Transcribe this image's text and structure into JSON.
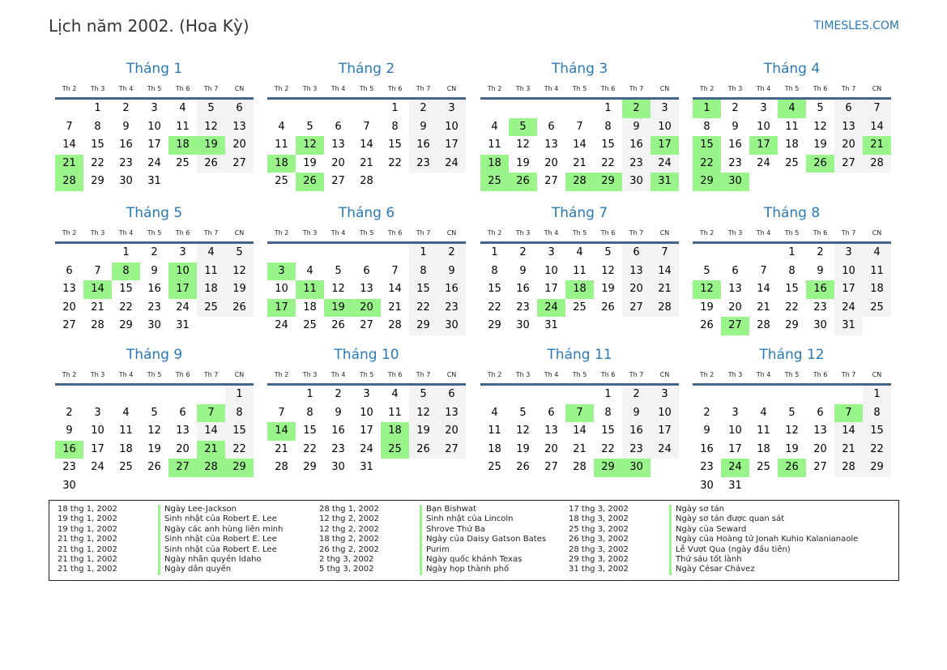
{
  "header": {
    "title": "Lịch năm 2002. (Hoa Kỳ)",
    "brand": "TIMESLES.COM"
  },
  "year": 2002,
  "colors": {
    "accent": "#2a7ab8",
    "holiday": "#99f58a",
    "weekend": "#f3f3f3",
    "rule": "#44648c"
  },
  "weekdays": [
    "Th 2",
    "Th 3",
    "Th 4",
    "Th 5",
    "Th 6",
    "Th 7",
    "CN"
  ],
  "months": [
    {
      "title": "Tháng 1",
      "holidays": [
        18,
        19,
        21,
        28
      ]
    },
    {
      "title": "Tháng 2",
      "holidays": [
        12,
        18,
        26
      ]
    },
    {
      "title": "Tháng 3",
      "holidays": [
        2,
        5,
        17,
        18,
        25,
        26,
        28,
        29,
        31
      ]
    },
    {
      "title": "Tháng 4",
      "holidays": [
        1,
        4,
        15,
        17,
        21,
        22,
        26,
        29,
        30
      ]
    },
    {
      "title": "Tháng 5",
      "holidays": [
        8,
        10,
        14,
        17
      ]
    },
    {
      "title": "Tháng 6",
      "holidays": [
        3,
        11,
        17,
        19,
        20
      ]
    },
    {
      "title": "Tháng 7",
      "holidays": [
        18,
        24
      ]
    },
    {
      "title": "Tháng 8",
      "holidays": [
        12,
        16,
        27
      ]
    },
    {
      "title": "Tháng 9",
      "holidays": [
        7,
        16,
        21,
        27,
        28,
        29
      ]
    },
    {
      "title": "Tháng 10",
      "holidays": [
        14,
        18,
        25
      ]
    },
    {
      "title": "Tháng 11",
      "holidays": [
        7,
        29,
        30
      ]
    },
    {
      "title": "Tháng 12",
      "holidays": [
        7,
        24,
        26
      ]
    }
  ],
  "holiday_list": [
    [
      {
        "date": "18 thg 1, 2002",
        "name": "Ngày Lee-Jackson"
      },
      {
        "date": "19 thg 1, 2002",
        "name": "Sinh nhật của Robert E. Lee"
      },
      {
        "date": "19 thg 1, 2002",
        "name": "Ngày các anh hùng liên minh"
      },
      {
        "date": "21 thg 1, 2002",
        "name": "Sinh nhật của Robert E. Lee"
      },
      {
        "date": "21 thg 1, 2002",
        "name": "Sinh nhật của Robert E. Lee"
      },
      {
        "date": "21 thg 1, 2002",
        "name": "Ngày nhân quyền Idaho"
      },
      {
        "date": "21 thg 1, 2002",
        "name": "Ngày dân quyền"
      }
    ],
    [
      {
        "date": "28 thg 1, 2002",
        "name": "Bạn Bishwat"
      },
      {
        "date": "12 thg 2, 2002",
        "name": "Sinh nhật của Lincoln"
      },
      {
        "date": "12 thg 2, 2002",
        "name": "Shrove Thứ Ba"
      },
      {
        "date": "18 thg 2, 2002",
        "name": "Ngày của Daisy Gatson Bates"
      },
      {
        "date": "26 thg 2, 2002",
        "name": "Purim"
      },
      {
        "date": "2 thg 3, 2002",
        "name": "Ngày quốc khánh Texas"
      },
      {
        "date": "5 thg 3, 2002",
        "name": "Ngày họp thành phố"
      }
    ],
    [
      {
        "date": "17 thg 3, 2002",
        "name": "Ngày sơ tán"
      },
      {
        "date": "18 thg 3, 2002",
        "name": "Ngày sơ tán được quan sát"
      },
      {
        "date": "25 thg 3, 2002",
        "name": "Ngày của Seward"
      },
      {
        "date": "26 thg 3, 2002",
        "name": "Ngày của Hoàng tử Jonah Kuhio Kalanianaole"
      },
      {
        "date": "28 thg 3, 2002",
        "name": "Lễ Vượt Qua (ngày đầu tiên)"
      },
      {
        "date": "29 thg 3, 2002",
        "name": "Thứ sáu tốt lành"
      },
      {
        "date": "31 thg 3, 2002",
        "name": "Ngày César Chávez"
      }
    ]
  ]
}
